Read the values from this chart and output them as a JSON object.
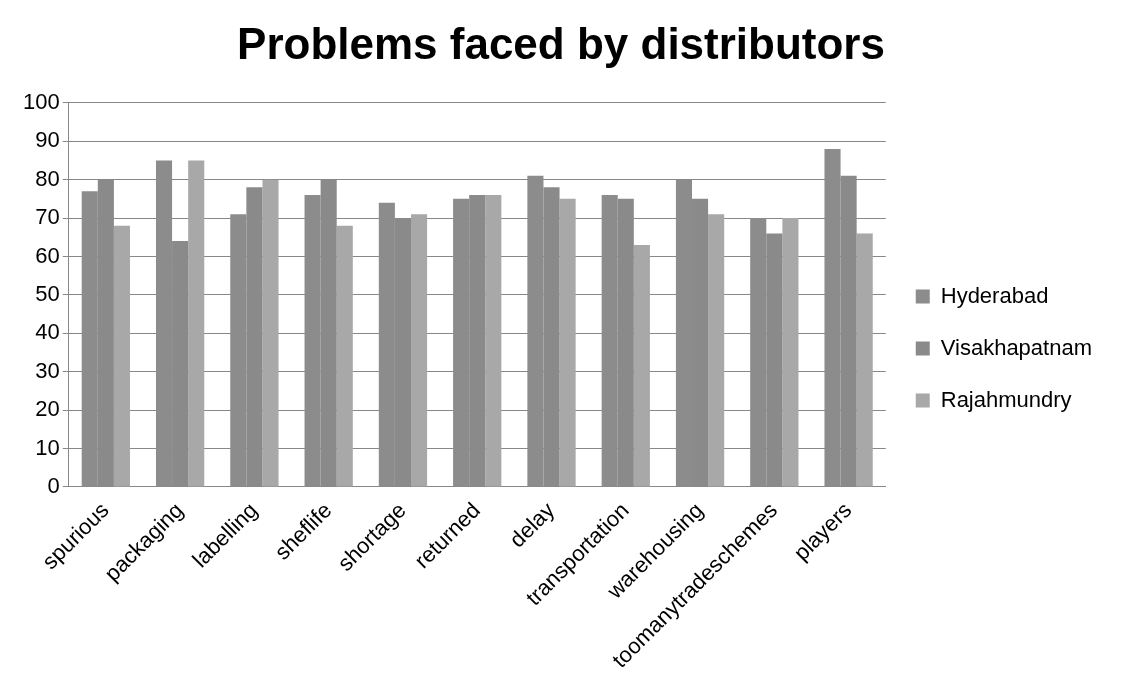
{
  "chart_data": {
    "type": "bar",
    "title": "Problems faced by distributors",
    "categories": [
      "spurious",
      "packaging",
      "labelling",
      "sheflife",
      "shortage",
      "returned",
      "delay",
      "transportation",
      "warehousing",
      "toomanytradeschemes",
      "players"
    ],
    "series": [
      {
        "name": "Hyderabad",
        "color": "#8c8c8c",
        "values": [
          77,
          85,
          71,
          76,
          74,
          75,
          81,
          76,
          80,
          70,
          88
        ]
      },
      {
        "name": "Visakhapatnam",
        "color": "#8a8a8a",
        "values": [
          80,
          64,
          78,
          80,
          70,
          76,
          78,
          75,
          75,
          66,
          81
        ]
      },
      {
        "name": "Rajahmundry",
        "color": "#a8a8a8",
        "values": [
          68,
          85,
          80,
          68,
          71,
          76,
          75,
          63,
          71,
          70,
          66
        ]
      }
    ],
    "ylim": [
      0,
      100
    ],
    "yticks": [
      0,
      10,
      20,
      30,
      40,
      50,
      60,
      70,
      80,
      90,
      100
    ],
    "grid": "y",
    "legend": "right"
  }
}
